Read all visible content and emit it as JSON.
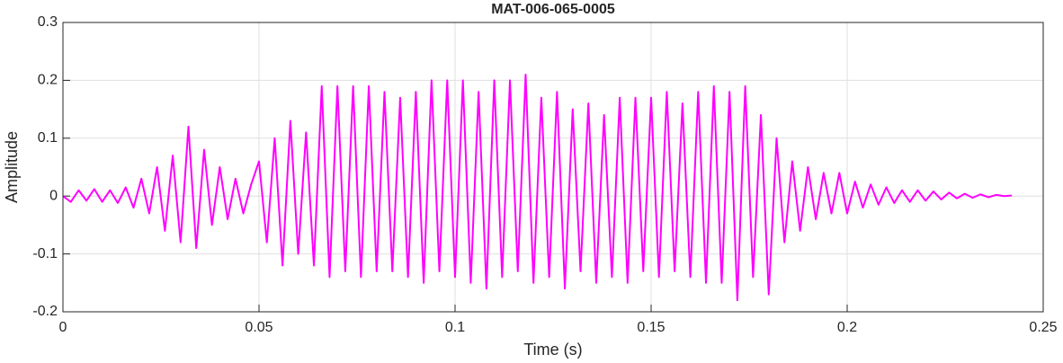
{
  "chart_data": {
    "type": "line",
    "title": "MAT-006-065-0005",
    "x_label": "Time (s)",
    "y_label": "Amplitude",
    "x": [
      0,
      0.002,
      0.004,
      0.006,
      0.008,
      0.01,
      0.012,
      0.014,
      0.016,
      0.018,
      0.02,
      0.022,
      0.024,
      0.026,
      0.028,
      0.03,
      0.032,
      0.034,
      0.036,
      0.038,
      0.04,
      0.042,
      0.044,
      0.046,
      0.048,
      0.05,
      0.052,
      0.054,
      0.056,
      0.058,
      0.06,
      0.062,
      0.064,
      0.066,
      0.068,
      0.07,
      0.072,
      0.074,
      0.076,
      0.078,
      0.08,
      0.082,
      0.084,
      0.086,
      0.088,
      0.09,
      0.092,
      0.094,
      0.096,
      0.098,
      0.1,
      0.102,
      0.104,
      0.106,
      0.108,
      0.11,
      0.112,
      0.114,
      0.116,
      0.118,
      0.12,
      0.122,
      0.124,
      0.126,
      0.128,
      0.13,
      0.132,
      0.134,
      0.136,
      0.138,
      0.14,
      0.142,
      0.144,
      0.146,
      0.148,
      0.15,
      0.152,
      0.154,
      0.156,
      0.158,
      0.16,
      0.162,
      0.164,
      0.166,
      0.168,
      0.17,
      0.172,
      0.174,
      0.176,
      0.178,
      0.18,
      0.182,
      0.184,
      0.186,
      0.188,
      0.19,
      0.192,
      0.194,
      0.196,
      0.198,
      0.2,
      0.202,
      0.204,
      0.206,
      0.208,
      0.21,
      0.212,
      0.214,
      0.216,
      0.218,
      0.22,
      0.222,
      0.224,
      0.226,
      0.228,
      0.23,
      0.232,
      0.234,
      0.236,
      0.238,
      0.24,
      0.242
    ],
    "series": [
      {
        "name": "Amplitude",
        "color": "#ff00ff",
        "values": [
          0,
          -0.01,
          0.01,
          -0.008,
          0.012,
          -0.01,
          0.01,
          -0.012,
          0.015,
          -0.02,
          0.03,
          -0.03,
          0.05,
          -0.06,
          0.07,
          -0.08,
          0.12,
          -0.09,
          0.08,
          -0.05,
          0.05,
          -0.04,
          0.03,
          -0.03,
          0.02,
          0.06,
          -0.08,
          0.1,
          -0.12,
          0.13,
          -0.1,
          0.11,
          -0.12,
          0.19,
          -0.14,
          0.19,
          -0.13,
          0.19,
          -0.14,
          0.19,
          -0.13,
          0.18,
          -0.13,
          0.17,
          -0.14,
          0.18,
          -0.15,
          0.2,
          -0.13,
          0.2,
          -0.14,
          0.2,
          -0.15,
          0.18,
          -0.16,
          0.2,
          -0.14,
          0.2,
          -0.13,
          0.21,
          -0.15,
          0.17,
          -0.14,
          0.18,
          -0.16,
          0.15,
          -0.13,
          0.16,
          -0.15,
          0.14,
          -0.14,
          0.17,
          -0.15,
          0.17,
          -0.13,
          0.17,
          -0.14,
          0.18,
          -0.13,
          0.16,
          -0.14,
          0.18,
          -0.15,
          0.19,
          -0.15,
          0.18,
          -0.18,
          0.19,
          -0.14,
          0.14,
          -0.17,
          0.1,
          -0.08,
          0.06,
          -0.06,
          0.05,
          -0.04,
          0.04,
          -0.03,
          0.04,
          -0.03,
          0.025,
          -0.02,
          0.02,
          -0.015,
          0.015,
          -0.012,
          0.01,
          -0.01,
          0.01,
          -0.008,
          0.008,
          -0.006,
          0.006,
          -0.004,
          0.004,
          -0.003,
          0.003,
          -0.002,
          0.002,
          0,
          0.001
        ]
      }
    ],
    "xlim": [
      0,
      0.25
    ],
    "xticks": [
      0,
      0.05,
      0.1,
      0.15,
      0.2,
      0.25
    ],
    "ylim": [
      -0.2,
      0.3
    ],
    "yticks": [
      -0.2,
      -0.1,
      0,
      0.1,
      0.2,
      0.3
    ],
    "grid": true
  }
}
